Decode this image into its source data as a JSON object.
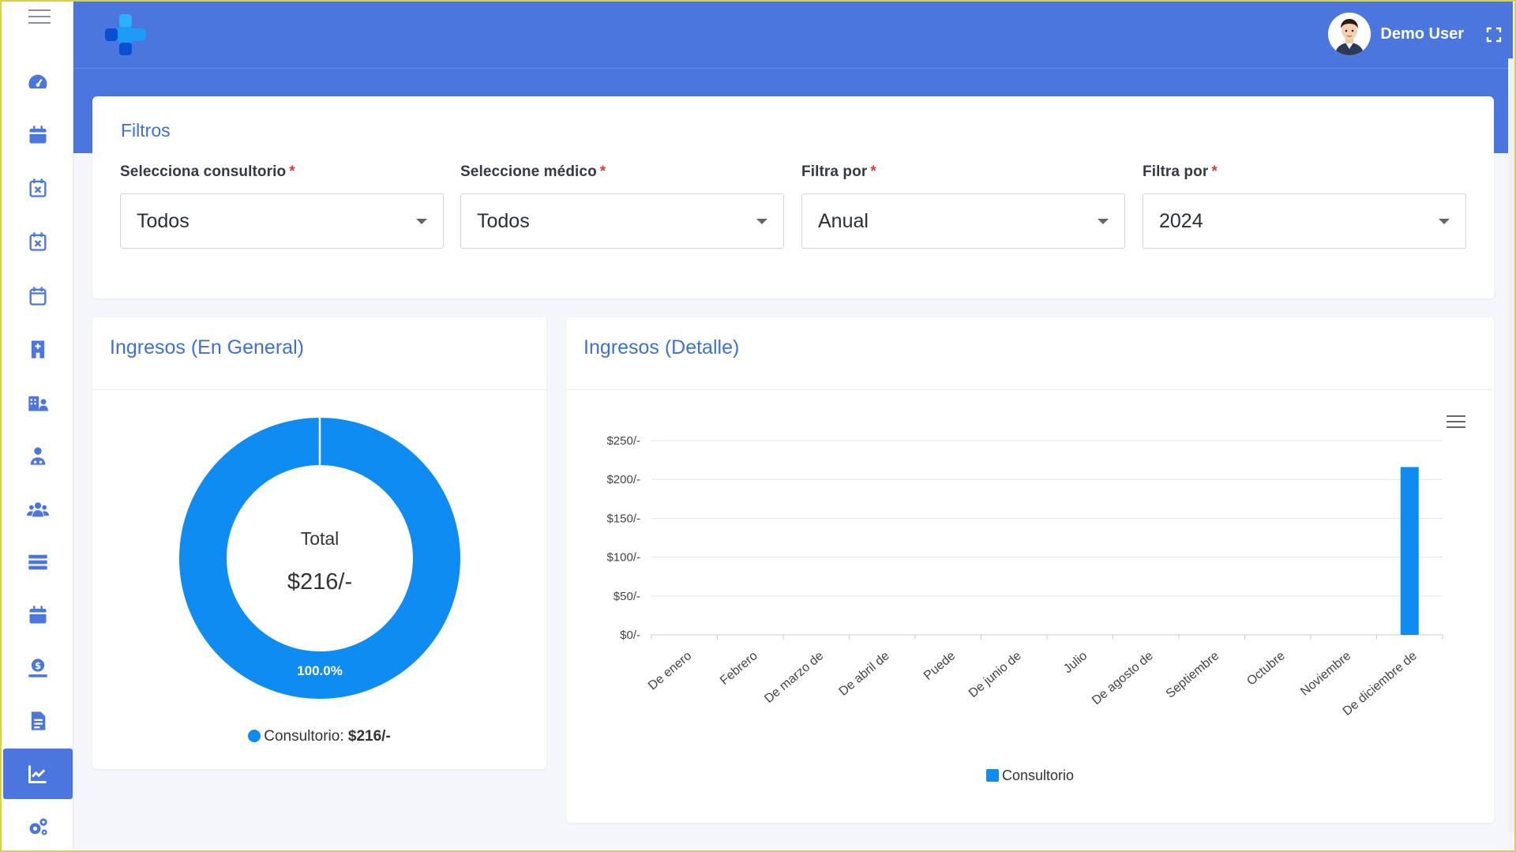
{
  "header": {
    "user_name": "Demo User"
  },
  "sidebar": {
    "items": [
      {
        "icon": "dashboard-icon"
      },
      {
        "icon": "calendar-icon"
      },
      {
        "icon": "calendar-cancel-icon"
      },
      {
        "icon": "calendar-cancel-icon"
      },
      {
        "icon": "calendar-blank-icon"
      },
      {
        "icon": "hospital-icon"
      },
      {
        "icon": "clinic-users-icon"
      },
      {
        "icon": "doctor-icon"
      },
      {
        "icon": "patients-icon"
      },
      {
        "icon": "server-list-icon"
      },
      {
        "icon": "calendar-icon"
      },
      {
        "icon": "payments-icon"
      },
      {
        "icon": "report-document-icon"
      },
      {
        "icon": "chart-line-icon",
        "active": true
      },
      {
        "icon": "settings-gears-icon"
      }
    ]
  },
  "filters": {
    "title": "Filtros",
    "fields": [
      {
        "label": "Selecciona consultorio",
        "required": "*",
        "value": "Todos"
      },
      {
        "label": "Seleccione médico",
        "required": "*",
        "value": "Todos"
      },
      {
        "label": "Filtra por",
        "required": "*",
        "value": "Anual"
      },
      {
        "label": "Filtra por",
        "required": "*",
        "value": "2024"
      }
    ]
  },
  "general": {
    "title": "Ingresos (En General)",
    "total_label": "Total",
    "total_value": "$216/-",
    "slice_label": "100.0%",
    "legend_label": "Consultorio:",
    "legend_value": "$216/-"
  },
  "detalle": {
    "title": "Ingresos (Detalle)",
    "legend_label": "Consultorio"
  },
  "colors": {
    "accent": "#4a76dd",
    "series": "#0f8cf2"
  },
  "chart_data": [
    {
      "type": "pie",
      "categories": [
        "Consultorio"
      ],
      "values": [
        216
      ],
      "center_label": "Total",
      "center_value": "$216/-",
      "slice_labels": [
        "100.0%"
      ]
    },
    {
      "type": "bar",
      "title": "Ingresos (Detalle)",
      "categories": [
        "De enero",
        "Febrero",
        "De marzo de",
        "De abril de",
        "Puede",
        "De junio de",
        "Julio",
        "De agosto de",
        "Septiembre",
        "Octubre",
        "Noviembre",
        "De diciembre de"
      ],
      "series": [
        {
          "name": "Consultorio",
          "values": [
            0,
            0,
            0,
            0,
            0,
            0,
            0,
            0,
            0,
            0,
            0,
            216
          ]
        }
      ],
      "yticks": [
        "$0/-",
        "$50/-",
        "$100/-",
        "$150/-",
        "$200/-",
        "$250/-"
      ],
      "ylim": [
        0,
        250
      ],
      "grid": true,
      "legend": "bottom-center"
    }
  ]
}
